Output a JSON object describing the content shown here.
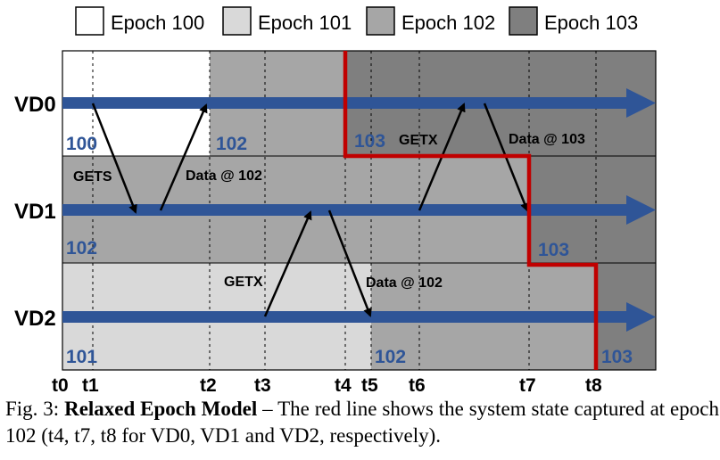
{
  "legend": [
    {
      "label": "Epoch 100",
      "color": "#ffffff"
    },
    {
      "label": "Epoch 101",
      "color": "#d9d9d9"
    },
    {
      "label": "Epoch 102",
      "color": "#a6a6a6"
    },
    {
      "label": "Epoch 103",
      "color": "#7f7f7f"
    }
  ],
  "rows": [
    {
      "label": "VD0",
      "epochs": [
        "100",
        "102",
        "103"
      ]
    },
    {
      "label": "VD1",
      "epochs": [
        "102",
        "103"
      ]
    },
    {
      "label": "VD2",
      "epochs": [
        "101",
        "102",
        "103"
      ]
    }
  ],
  "messages": {
    "gets": "GETS",
    "data102_a": "Data @ 102",
    "getx_a": "GETX",
    "data102_b": "Data @ 102",
    "getx_b": "GETX",
    "data103": "Data @ 103"
  },
  "time_labels": [
    "t0",
    "t1",
    "t2",
    "t3",
    "t4",
    "t5",
    "t6",
    "t7",
    "t8"
  ],
  "caption": {
    "prefix": "Fig. 3: ",
    "title": "Relaxed Epoch Model",
    "rest": " – The red line shows the system state captured at epoch 102 (t4, t7, t8 for VD0, VD1 and VD2, respectively)."
  },
  "colors": {
    "timeline": "#2f5597",
    "cut": "#c00000",
    "epoch_label": "#2f5597"
  }
}
